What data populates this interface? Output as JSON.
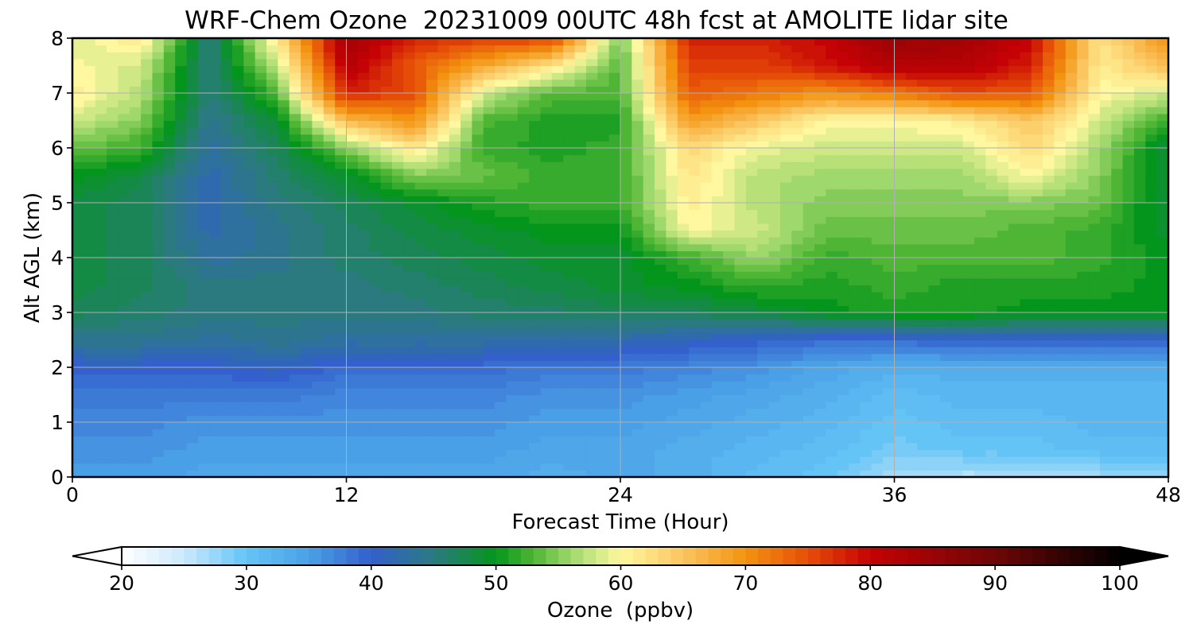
{
  "chart_data": {
    "type": "heatmap",
    "title": "WRF-Chem Ozone  20231009 00UTC 48h fcst at AMOLITE lidar site",
    "xlabel": "Forecast Time (Hour)",
    "ylabel": "Alt AGL (km)",
    "xlim": [
      0,
      48
    ],
    "ylim": [
      0,
      8
    ],
    "x_ticks": [
      "0",
      "12",
      "24",
      "36",
      "48"
    ],
    "y_ticks": [
      "0",
      "1",
      "2",
      "3",
      "4",
      "5",
      "6",
      "7",
      "8"
    ],
    "grid": true,
    "x": [
      0,
      3,
      6,
      9,
      12,
      15,
      18,
      21,
      24,
      27,
      30,
      33,
      36,
      39,
      42,
      45,
      48
    ],
    "y": [
      0,
      0.5,
      1,
      1.5,
      2,
      2.5,
      3,
      3.5,
      4,
      4.5,
      5,
      5.5,
      6,
      6.5,
      7,
      7.5,
      8
    ],
    "z": [
      [
        35,
        35,
        34,
        34,
        34,
        34,
        34,
        33,
        34,
        33,
        31,
        30,
        27,
        26,
        26,
        27,
        28
      ],
      [
        36,
        36,
        35,
        35,
        35,
        35,
        35,
        34,
        34,
        33,
        32,
        31,
        29,
        30,
        30,
        31,
        31
      ],
      [
        37,
        37,
        36,
        36,
        36,
        36,
        36,
        35,
        35,
        34,
        33,
        32,
        30,
        31,
        31,
        32,
        32
      ],
      [
        38,
        38,
        38,
        38,
        37,
        37,
        37,
        36,
        36,
        35,
        34,
        33,
        31,
        32,
        32,
        32,
        32
      ],
      [
        40,
        40,
        40,
        41,
        39,
        39,
        39,
        38,
        38,
        37,
        36,
        34,
        33,
        33,
        33,
        33,
        33
      ],
      [
        44,
        44,
        43,
        44,
        43,
        43,
        43,
        43,
        42,
        41,
        40,
        39,
        39,
        40,
        40,
        40,
        40
      ],
      [
        47,
        46,
        45,
        45,
        45,
        45,
        46,
        46,
        47,
        47,
        48,
        50,
        51,
        51,
        50,
        50,
        50
      ],
      [
        48,
        47,
        45,
        45,
        45,
        46,
        47,
        48,
        49,
        50,
        52,
        51,
        52,
        51,
        51,
        51,
        50
      ],
      [
        48,
        47,
        43,
        44,
        46,
        47,
        48,
        49,
        49,
        52,
        56,
        52,
        53,
        53,
        53,
        52,
        50
      ],
      [
        48,
        47,
        42,
        44,
        46,
        48,
        49,
        50,
        50,
        60,
        58,
        54,
        54,
        54,
        53,
        52,
        49
      ],
      [
        48,
        47,
        42,
        45,
        47,
        49,
        51,
        52,
        52,
        61,
        57,
        55,
        55,
        55,
        55,
        54,
        48
      ],
      [
        50,
        48,
        42,
        46,
        49,
        55,
        54,
        52,
        52,
        62,
        57,
        56,
        56,
        56,
        60,
        55,
        48
      ],
      [
        54,
        52,
        43,
        47,
        55,
        62,
        52,
        51,
        52,
        63,
        59,
        58,
        58,
        58,
        63,
        56,
        48
      ],
      [
        58,
        55,
        44,
        49,
        66,
        70,
        53,
        51,
        51,
        69,
        65,
        60,
        60,
        61,
        65,
        58,
        52
      ],
      [
        61,
        57,
        45,
        53,
        78,
        75,
        58,
        53,
        53,
        74,
        72,
        70,
        72,
        75,
        74,
        60,
        58
      ],
      [
        60,
        58,
        45,
        58,
        82,
        74,
        68,
        62,
        53,
        76,
        76,
        79,
        82,
        82,
        78,
        61,
        66
      ],
      [
        58,
        62,
        45,
        62,
        84,
        78,
        76,
        76,
        54,
        78,
        78,
        80,
        85,
        84,
        80,
        62,
        70
      ]
    ],
    "colorbar": {
      "label": "Ozone  (ppbv)",
      "min": 20,
      "max": 100,
      "ticks": [
        "20",
        "30",
        "40",
        "50",
        "60",
        "70",
        "80",
        "90",
        "100"
      ],
      "extend": "both",
      "stops": [
        [
          20,
          "#ffffff"
        ],
        [
          25,
          "#cbe9fb"
        ],
        [
          30,
          "#64c4f6"
        ],
        [
          35,
          "#4aa0e6"
        ],
        [
          40,
          "#3360cc"
        ],
        [
          45,
          "#2b7a80"
        ],
        [
          50,
          "#04961c"
        ],
        [
          53,
          "#4fb535"
        ],
        [
          56,
          "#9fd86c"
        ],
        [
          60,
          "#fff8a0"
        ],
        [
          65,
          "#fbc560"
        ],
        [
          70,
          "#f39310"
        ],
        [
          75,
          "#e64e08"
        ],
        [
          80,
          "#c50205"
        ],
        [
          90,
          "#6e0606"
        ],
        [
          100,
          "#000000"
        ]
      ]
    }
  }
}
